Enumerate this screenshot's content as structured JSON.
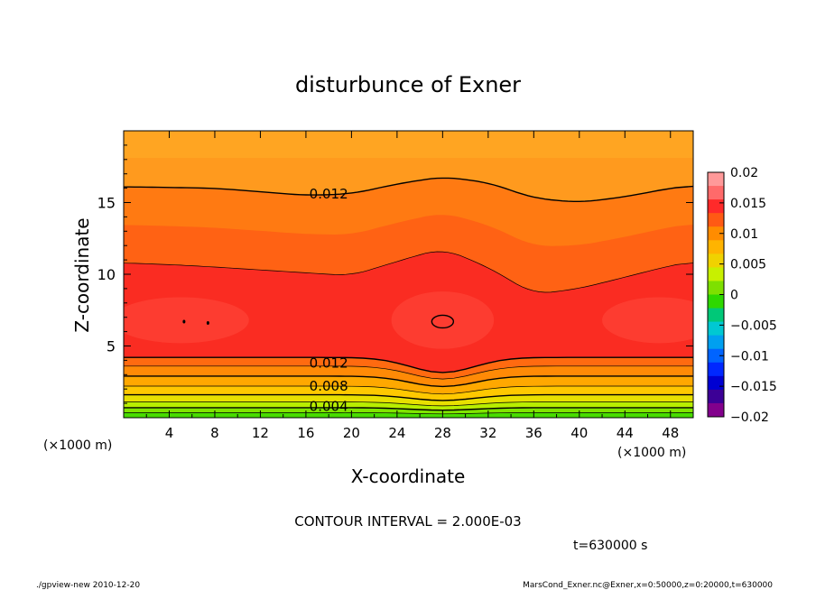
{
  "chart_data": {
    "type": "heatmap",
    "subtype": "filled-contour",
    "title": "disturbunce of Exner",
    "xlabel": "X-coordinate",
    "ylabel": "Z-coordinate",
    "x_unit": "(×1000 m)",
    "x_unit_right": "(×1000 m)",
    "xlim": [
      0,
      50
    ],
    "ylim": [
      0,
      20
    ],
    "x_ticks": [
      4,
      8,
      12,
      16,
      20,
      24,
      28,
      32,
      36,
      40,
      44,
      48
    ],
    "y_ticks": [
      5,
      10,
      15
    ],
    "contour_interval_text": "CONTOUR INTERVAL = 2.000E-03",
    "time_text": "t=630000 s",
    "contour_labels": [
      {
        "text": "0.012",
        "x": 18,
        "z": 15.6
      },
      {
        "text": "0.012",
        "x": 18,
        "z": 3.8
      },
      {
        "text": "0.008",
        "x": 18,
        "z": 2.2
      },
      {
        "text": "0.004",
        "x": 18,
        "z": 0.8
      }
    ],
    "levels": [
      0.002,
      0.004,
      0.006,
      0.008,
      0.01,
      0.012,
      0.014,
      0.016
    ],
    "level_depths": [
      0.35,
      0.7,
      1.1,
      1.6,
      2.2,
      2.9,
      3.6,
      4.2
    ],
    "upper_levels": [
      {
        "value": 0.012,
        "profile": [
          [
            0,
            16.1
          ],
          [
            8,
            16.0
          ],
          [
            16,
            15.5
          ],
          [
            20,
            15.6
          ],
          [
            24,
            16.3
          ],
          [
            28,
            16.8
          ],
          [
            32,
            16.4
          ],
          [
            36,
            15.3
          ],
          [
            40,
            15.0
          ],
          [
            44,
            15.4
          ],
          [
            48,
            16.0
          ],
          [
            50,
            16.2
          ]
        ]
      },
      {
        "value": 0.014,
        "profile": [
          [
            0,
            10.8
          ],
          [
            6,
            10.6
          ],
          [
            12,
            10.3
          ],
          [
            16,
            10.1
          ],
          [
            20,
            9.9
          ],
          [
            24,
            10.9
          ],
          [
            28,
            11.8
          ],
          [
            32,
            10.5
          ],
          [
            36,
            8.6
          ],
          [
            40,
            9.0
          ],
          [
            44,
            9.8
          ],
          [
            48,
            10.6
          ],
          [
            50,
            10.9
          ]
        ]
      }
    ],
    "peak_closed_contour": {
      "value": 0.016,
      "x": 28,
      "z": 6.7
    },
    "colorbar": {
      "ticks": [
        "0.02",
        "0.015",
        "0.01",
        "0.005",
        "0",
        "−0.005",
        "−0.01",
        "−0.015",
        "−0.02"
      ],
      "colors": [
        "#ff9999",
        "#ff6a6a",
        "#ff2a2a",
        "#ff5a14",
        "#ff8c00",
        "#ffb400",
        "#f0d200",
        "#c8f000",
        "#7ee000",
        "#2ed800",
        "#00c878",
        "#00c8d2",
        "#00a0f0",
        "#0064ff",
        "#0028ff",
        "#0000d2",
        "#3c0096",
        "#82008c"
      ]
    }
  },
  "footer": {
    "left": "./gpview-new   2010-12-20",
    "right": "MarsCond_Exner.nc@Exner,x=0:50000,z=0:20000,t=630000"
  }
}
